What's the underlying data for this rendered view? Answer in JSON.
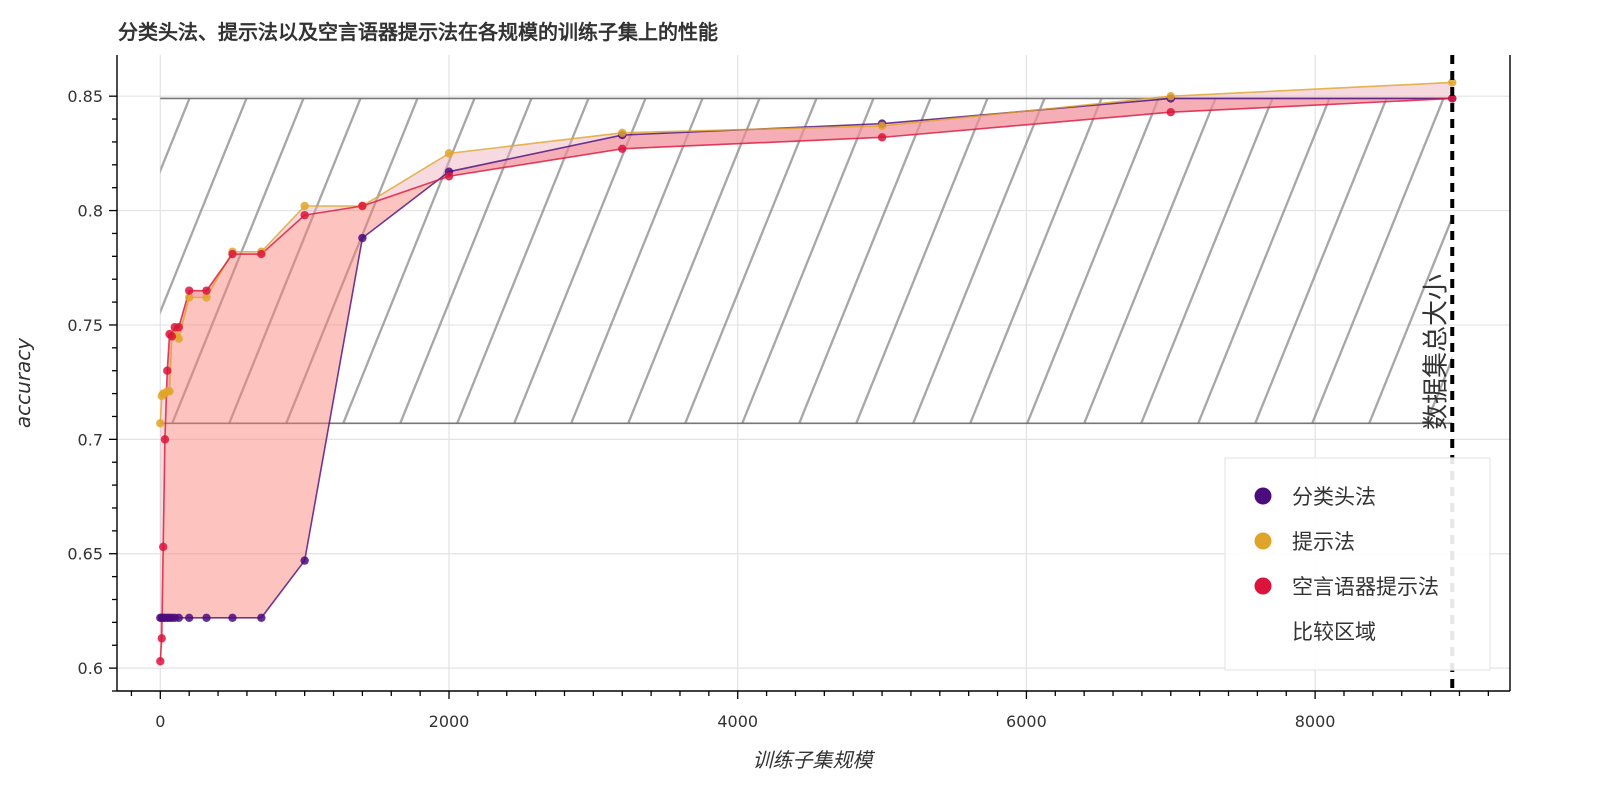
{
  "chart_data": {
    "type": "line",
    "title": "分类头法、提示法以及空言语器提示法在各规模的训练子集上的性能",
    "xlabel": "训练子集规模",
    "ylabel": "accuracy",
    "xlim": [
      -300,
      9350
    ],
    "ylim": [
      0.59,
      0.868
    ],
    "x_ticks": [
      0,
      2000,
      4000,
      6000,
      8000
    ],
    "x_tick_labels": [
      "0",
      "2000",
      "4000",
      "6000",
      "8000"
    ],
    "y_ticks": [
      0.6,
      0.65,
      0.7,
      0.75,
      0.8,
      0.85
    ],
    "y_tick_labels": [
      "0.6",
      "0.65",
      "0.7",
      "0.75",
      "0.8",
      "0.85"
    ],
    "grid": true,
    "legend_position": "bottom-right",
    "series": [
      {
        "name": "分类头法",
        "color": "#4B0C7E",
        "x": [
          0,
          10,
          20,
          32,
          48,
          64,
          80,
          100,
          128,
          200,
          320,
          500,
          700,
          1000,
          1400,
          2000,
          3200,
          5000,
          7000,
          8950
        ],
        "y": [
          0.622,
          0.622,
          0.622,
          0.622,
          0.622,
          0.622,
          0.622,
          0.622,
          0.622,
          0.622,
          0.622,
          0.622,
          0.622,
          0.647,
          0.788,
          0.817,
          0.833,
          0.838,
          0.849,
          0.849
        ]
      },
      {
        "name": "提示法",
        "color": "#E0A42A",
        "x": [
          0,
          10,
          20,
          32,
          48,
          64,
          80,
          100,
          128,
          200,
          320,
          500,
          700,
          1000,
          1400,
          2000,
          3200,
          5000,
          7000,
          8950
        ],
        "y": [
          0.707,
          0.719,
          0.72,
          0.72,
          0.721,
          0.721,
          0.745,
          0.746,
          0.744,
          0.762,
          0.762,
          0.782,
          0.782,
          0.802,
          0.802,
          0.825,
          0.834,
          0.837,
          0.85,
          0.856
        ]
      },
      {
        "name": "空言语器提示法",
        "color": "#DC143C",
        "x": [
          0,
          10,
          20,
          32,
          48,
          64,
          80,
          100,
          128,
          200,
          320,
          500,
          700,
          1000,
          1400,
          2000,
          3200,
          5000,
          7000,
          8950
        ],
        "y": [
          0.603,
          0.613,
          0.653,
          0.7,
          0.73,
          0.746,
          0.745,
          0.749,
          0.749,
          0.765,
          0.765,
          0.781,
          0.781,
          0.798,
          0.802,
          0.815,
          0.827,
          0.832,
          0.843,
          0.849
        ]
      }
    ],
    "comparison_region": {
      "name": "比较区域",
      "x": [
        0,
        8950
      ],
      "y": [
        0.707,
        0.849
      ],
      "hatch": "diagonal"
    },
    "vertical_line": {
      "x": 8950,
      "label": "数据集总大小",
      "style": "dotted"
    },
    "fill_between": [
      {
        "pair": [
          "分类头法",
          "空言语器提示法"
        ],
        "color": "#FB7F72"
      },
      {
        "pair": [
          "提示法",
          "空言语器提示法"
        ],
        "color": "#DA70D6"
      }
    ]
  }
}
